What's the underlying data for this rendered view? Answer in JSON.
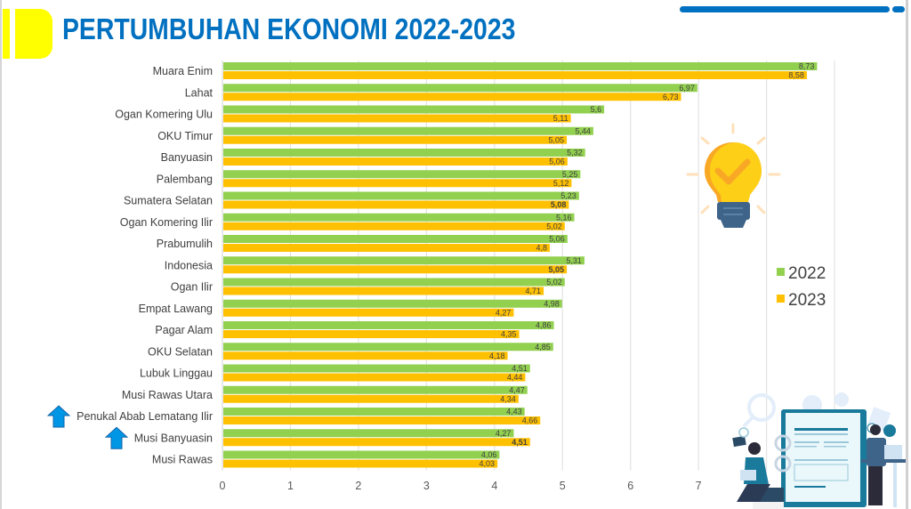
{
  "header": {
    "title": "PERTUMBUHAN EKONOMI 2022-2023"
  },
  "colors": {
    "accent_yellow": "#ffff00",
    "title_blue": "#0070c0",
    "series_2022": "#92d050",
    "series_2023": "#ffc000",
    "arrow_blue": "#0096e6",
    "highlight_label_blue": "#0070c0"
  },
  "icons": {
    "bulb": "lightbulb-check-icon",
    "illustration": "people-report-illustration",
    "arrow": "arrow-up-icon"
  },
  "chart_data": {
    "type": "bar",
    "orientation": "horizontal",
    "title": "PERTUMBUHAN EKONOMI 2022-2023",
    "xlabel": "",
    "ylabel": "",
    "xlim": [
      0,
      9
    ],
    "x_ticks": [
      "0",
      "1",
      "2",
      "3",
      "4",
      "5",
      "6",
      "7"
    ],
    "grid": true,
    "legend_position": "right",
    "categories": [
      "Muara Enim",
      "Lahat",
      "Ogan Komering Ulu",
      "OKU Timur",
      "Banyuasin",
      "Palembang",
      "Sumatera Selatan",
      "Ogan Komering Ilir",
      "Prabumulih",
      "Indonesia",
      "Ogan Ilir",
      "Empat Lawang",
      "Pagar Alam",
      "OKU Selatan",
      "Lubuk Linggau",
      "Musi Rawas Utara",
      "Penukal Abab Lematang Ilir",
      "Musi Banyuasin",
      "Musi Rawas"
    ],
    "series": [
      {
        "name": "2022",
        "values": [
          8.73,
          6.97,
          5.6,
          5.44,
          5.32,
          5.25,
          5.23,
          5.16,
          5.06,
          5.31,
          5.02,
          4.98,
          4.86,
          4.85,
          4.51,
          4.47,
          4.43,
          4.27,
          4.06
        ],
        "labels": [
          "8,73",
          "6,97",
          "5,6",
          "5,44",
          "5,32",
          "5,25",
          "5,23",
          "5,16",
          "5,06",
          "5,31",
          "5,02",
          "4,98",
          "4,86",
          "4,85",
          "4,51",
          "4,47",
          "4,43",
          "4,27",
          "4,06"
        ]
      },
      {
        "name": "2023",
        "values": [
          8.58,
          6.73,
          5.11,
          5.05,
          5.06,
          5.12,
          5.08,
          5.02,
          4.8,
          5.05,
          4.71,
          4.27,
          4.35,
          4.18,
          4.44,
          4.34,
          4.66,
          4.51,
          4.03
        ],
        "labels": [
          "8,58",
          "6,73",
          "5,11",
          "5,05",
          "5,06",
          "5,12",
          "5,08",
          "5,02",
          "4,8",
          "5,05",
          "4,71",
          "4,27",
          "4,35",
          "4,18",
          "4,44",
          "4,34",
          "4,66",
          "4,51",
          "4,03"
        ]
      }
    ],
    "bold_labels": [
      {
        "series": "2023",
        "category": "Sumatera Selatan"
      },
      {
        "series": "2023",
        "category": "Indonesia"
      },
      {
        "series": "2023",
        "category": "Musi Banyuasin",
        "color": "blue"
      }
    ],
    "annotations": [
      {
        "type": "arrow-up",
        "category": "Penukal Abab Lematang Ilir"
      },
      {
        "type": "arrow-up",
        "category": "Musi Banyuasin"
      }
    ]
  }
}
